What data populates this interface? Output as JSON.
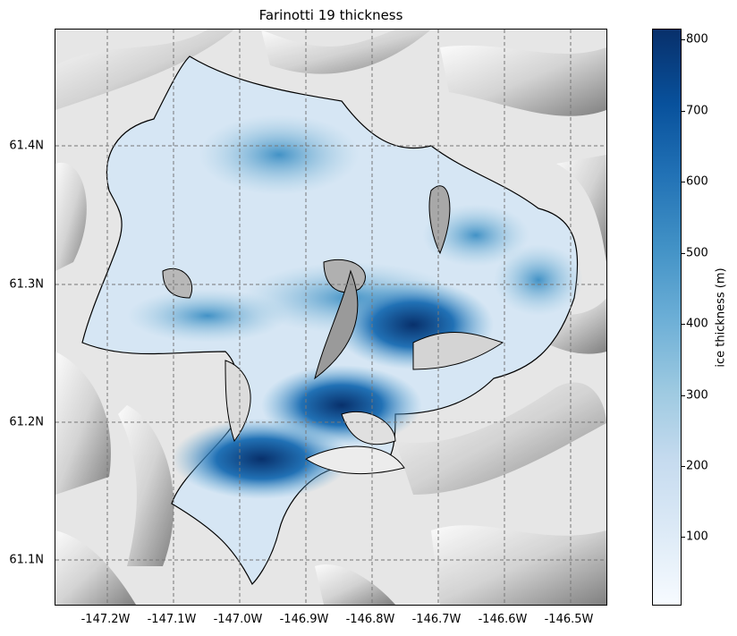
{
  "title": "Farinotti 19 thickness",
  "x_ticks": [
    "-147.2W",
    "-147.1W",
    "-147.0W",
    "-146.9W",
    "-146.8W",
    "-146.7W",
    "-146.6W",
    "-146.5W"
  ],
  "y_ticks": [
    "61.4N",
    "61.3N",
    "61.2N",
    "61.1N"
  ],
  "colorbar": {
    "label": "ice thickness (m)",
    "ticks": [
      "100",
      "200",
      "300",
      "400",
      "500",
      "600",
      "700",
      "800"
    ],
    "colormap": "Blues"
  },
  "chart_data": {
    "type": "heatmap",
    "title": "Farinotti 19 thickness",
    "xlabel": "",
    "ylabel": "",
    "xlim": [
      -147.27,
      -146.46
    ],
    "ylim": [
      61.067,
      61.487
    ],
    "colorbar_range": [
      0,
      810
    ],
    "grid": true,
    "background": "hillshade terrain",
    "colors": {
      "low": "#f7fbff",
      "high": "#08306b",
      "outline": "#000000"
    }
  }
}
